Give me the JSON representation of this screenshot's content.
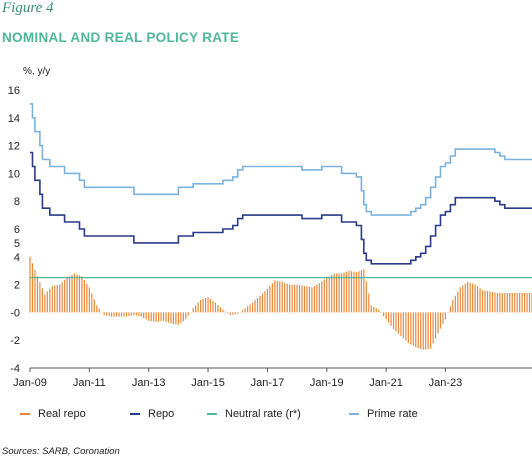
{
  "figure_label": "Figure 4",
  "title": "NOMINAL AND REAL POLICY RATE",
  "y_unit": "%, y/y",
  "source": "Sources: SARB, Coronation",
  "colors": {
    "real_repo": "#e8893a",
    "repo": "#2a3a8c",
    "neutral": "#4fb69a",
    "prime": "#7ab3e0",
    "axis": "#555555",
    "text": "#222222"
  },
  "chart_data": {
    "type": "line",
    "title": "NOMINAL AND REAL POLICY RATE",
    "ylabel": "%, y/y",
    "xlabel": "",
    "ylim": [
      -4,
      16
    ],
    "yticks": [
      -4,
      -2,
      0,
      2,
      4,
      5,
      6,
      8,
      10,
      12,
      14,
      16
    ],
    "ytick_labels": [
      "-4",
      "-2",
      "-0",
      "2",
      "4",
      "5",
      "6",
      "8",
      "10",
      "12",
      "14",
      "16"
    ],
    "xlim": [
      "2009-01",
      "2025-12"
    ],
    "xticks": [
      "Jan-09",
      "Jan-11",
      "Jan-13",
      "Jan-15",
      "Jan-17",
      "Jan-19",
      "Jan-21",
      "Jan-23"
    ],
    "grid": false,
    "legend_position": "bottom",
    "series": [
      {
        "name": "Real repo",
        "style": "bars",
        "points": [
          [
            "2009-01",
            4.0
          ],
          [
            "2009-04",
            2.6
          ],
          [
            "2009-07",
            1.3
          ],
          [
            "2009-10",
            1.9
          ],
          [
            "2010-01",
            2.0
          ],
          [
            "2010-04",
            2.5
          ],
          [
            "2010-07",
            2.8
          ],
          [
            "2010-10",
            2.6
          ],
          [
            "2011-01",
            1.8
          ],
          [
            "2011-04",
            0.5
          ],
          [
            "2011-07",
            -0.2
          ],
          [
            "2011-10",
            -0.3
          ],
          [
            "2012-01",
            -0.3
          ],
          [
            "2012-04",
            -0.3
          ],
          [
            "2012-07",
            -0.2
          ],
          [
            "2012-10",
            -0.3
          ],
          [
            "2013-01",
            -0.6
          ],
          [
            "2013-04",
            -0.7
          ],
          [
            "2013-07",
            -0.6
          ],
          [
            "2013-10",
            -0.8
          ],
          [
            "2014-01",
            -0.9
          ],
          [
            "2014-04",
            -0.5
          ],
          [
            "2014-07",
            0.3
          ],
          [
            "2014-10",
            0.9
          ],
          [
            "2015-01",
            1.1
          ],
          [
            "2015-04",
            0.7
          ],
          [
            "2015-07",
            0.2
          ],
          [
            "2015-10",
            -0.2
          ],
          [
            "2016-01",
            -0.1
          ],
          [
            "2016-04",
            0.3
          ],
          [
            "2016-07",
            0.7
          ],
          [
            "2016-10",
            1.2
          ],
          [
            "2017-01",
            1.7
          ],
          [
            "2017-04",
            2.3
          ],
          [
            "2017-07",
            2.2
          ],
          [
            "2017-10",
            2.0
          ],
          [
            "2018-01",
            2.0
          ],
          [
            "2018-04",
            1.9
          ],
          [
            "2018-07",
            1.8
          ],
          [
            "2018-10",
            2.1
          ],
          [
            "2019-01",
            2.5
          ],
          [
            "2019-04",
            2.8
          ],
          [
            "2019-07",
            2.8
          ],
          [
            "2019-10",
            3.0
          ],
          [
            "2020-01",
            2.9
          ],
          [
            "2020-04",
            3.1
          ],
          [
            "2020-07",
            0.5
          ],
          [
            "2020-10",
            0.2
          ],
          [
            "2021-01",
            -0.5
          ],
          [
            "2021-04",
            -1.2
          ],
          [
            "2021-07",
            -1.7
          ],
          [
            "2021-10",
            -2.2
          ],
          [
            "2022-01",
            -2.5
          ],
          [
            "2022-04",
            -2.7
          ],
          [
            "2022-07",
            -2.6
          ],
          [
            "2022-10",
            -1.5
          ],
          [
            "2023-01",
            -0.5
          ],
          [
            "2023-04",
            0.9
          ],
          [
            "2023-07",
            1.8
          ],
          [
            "2023-10",
            2.2
          ],
          [
            "2024-01",
            2.0
          ],
          [
            "2024-04",
            1.6
          ],
          [
            "2024-07",
            1.5
          ],
          [
            "2024-10",
            1.4
          ],
          [
            "2025-01",
            1.4
          ],
          [
            "2025-04",
            1.4
          ],
          [
            "2025-07",
            1.4
          ],
          [
            "2025-10",
            1.4
          ]
        ]
      },
      {
        "name": "Repo",
        "style": "line",
        "points": [
          [
            "2009-01",
            11.5
          ],
          [
            "2009-02",
            10.5
          ],
          [
            "2009-03",
            9.5
          ],
          [
            "2009-05",
            8.5
          ],
          [
            "2009-06",
            7.5
          ],
          [
            "2009-09",
            7.0
          ],
          [
            "2010-03",
            6.5
          ],
          [
            "2010-09",
            6.0
          ],
          [
            "2010-11",
            5.5
          ],
          [
            "2012-07",
            5.0
          ],
          [
            "2014-01",
            5.5
          ],
          [
            "2014-07",
            5.75
          ],
          [
            "2015-07",
            6.0
          ],
          [
            "2015-11",
            6.25
          ],
          [
            "2016-01",
            6.75
          ],
          [
            "2016-03",
            7.0
          ],
          [
            "2018-03",
            6.75
          ],
          [
            "2018-11",
            7.0
          ],
          [
            "2019-07",
            6.5
          ],
          [
            "2020-01",
            6.25
          ],
          [
            "2020-03",
            5.25
          ],
          [
            "2020-04",
            4.25
          ],
          [
            "2020-05",
            3.75
          ],
          [
            "2020-07",
            3.5
          ],
          [
            "2021-11",
            3.75
          ],
          [
            "2022-01",
            4.0
          ],
          [
            "2022-03",
            4.25
          ],
          [
            "2022-05",
            4.75
          ],
          [
            "2022-07",
            5.5
          ],
          [
            "2022-09",
            6.25
          ],
          [
            "2022-11",
            7.0
          ],
          [
            "2023-01",
            7.25
          ],
          [
            "2023-03",
            7.75
          ],
          [
            "2023-05",
            8.25
          ],
          [
            "2024-09",
            8.0
          ],
          [
            "2024-11",
            7.75
          ],
          [
            "2025-01",
            7.5
          ],
          [
            "2025-12",
            7.5
          ]
        ]
      },
      {
        "name": "Neutral rate (r*)",
        "style": "line",
        "points": [
          [
            "2009-01",
            2.5
          ],
          [
            "2025-12",
            2.5
          ]
        ]
      },
      {
        "name": "Prime rate",
        "style": "line",
        "points": [
          [
            "2009-01",
            15.0
          ],
          [
            "2009-02",
            14.0
          ],
          [
            "2009-03",
            13.0
          ],
          [
            "2009-05",
            12.0
          ],
          [
            "2009-06",
            11.0
          ],
          [
            "2009-09",
            10.5
          ],
          [
            "2010-03",
            10.0
          ],
          [
            "2010-09",
            9.5
          ],
          [
            "2010-11",
            9.0
          ],
          [
            "2012-07",
            8.5
          ],
          [
            "2014-01",
            9.0
          ],
          [
            "2014-07",
            9.25
          ],
          [
            "2015-07",
            9.5
          ],
          [
            "2015-11",
            9.75
          ],
          [
            "2016-01",
            10.25
          ],
          [
            "2016-03",
            10.5
          ],
          [
            "2018-03",
            10.25
          ],
          [
            "2018-11",
            10.5
          ],
          [
            "2019-07",
            10.0
          ],
          [
            "2020-01",
            9.75
          ],
          [
            "2020-03",
            8.75
          ],
          [
            "2020-04",
            7.75
          ],
          [
            "2020-05",
            7.25
          ],
          [
            "2020-07",
            7.0
          ],
          [
            "2021-11",
            7.25
          ],
          [
            "2022-01",
            7.5
          ],
          [
            "2022-03",
            7.75
          ],
          [
            "2022-05",
            8.25
          ],
          [
            "2022-07",
            9.0
          ],
          [
            "2022-09",
            9.75
          ],
          [
            "2022-11",
            10.5
          ],
          [
            "2023-01",
            10.75
          ],
          [
            "2023-03",
            11.25
          ],
          [
            "2023-05",
            11.75
          ],
          [
            "2024-09",
            11.5
          ],
          [
            "2024-11",
            11.25
          ],
          [
            "2025-01",
            11.0
          ],
          [
            "2025-12",
            11.0
          ]
        ]
      }
    ]
  }
}
